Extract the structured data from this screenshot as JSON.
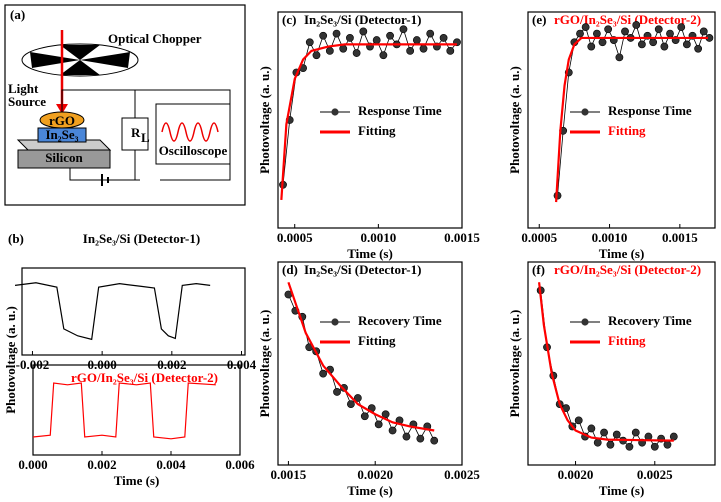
{
  "diagram": {
    "label": "(a)",
    "chopper": "Optical Chopper",
    "light_source": "Light\nSource",
    "rgo": "rGO",
    "in2se3": "In₂Se₃",
    "silicon": "Silicon",
    "resistor": "R",
    "resistor_sub": "L",
    "oscilloscope": "Oscilloscope"
  },
  "chart_data": [
    {
      "type": "line",
      "label": "(b)",
      "title": "In₂Se₃/Si (Detector-1)",
      "title_color": "#000000",
      "ylabel": "Photovoltage (a. u.)",
      "x": [
        -0.0025,
        -0.0019,
        -0.0013,
        -0.0011,
        -0.0007,
        -0.0003,
        -0.0001,
        0.0005,
        0.0011,
        0.0015,
        0.0017,
        0.0019,
        0.0021,
        0.0023,
        0.0027,
        0.0031
      ],
      "series": [
        {
          "name": "Detector-1",
          "color": "#000000",
          "values": [
            0.8,
            0.83,
            0.78,
            0.3,
            0.22,
            0.18,
            0.78,
            0.82,
            0.79,
            0.77,
            0.3,
            0.22,
            0.19,
            0.8,
            0.82,
            0.8
          ]
        }
      ],
      "xlim": [
        -0.0023,
        0.0041
      ],
      "xticks": [
        -0.002,
        {
          "value": 0,
          "label": "0.000"
        },
        0.002,
        0.004
      ],
      "ylim": [
        0,
        1
      ]
    },
    {
      "type": "line",
      "title": "rGO/In₂Se₃/Si (Detector-2)",
      "title_color": "#ff0000",
      "xlabel": "Time (s)",
      "x": [
        0,
        0.0005,
        0.0006,
        0.001,
        0.0014,
        0.0015,
        0.002,
        0.0024,
        0.0025,
        0.003,
        0.0034,
        0.0035,
        0.004,
        0.0044,
        0.0045,
        0.0053
      ],
      "series": [
        {
          "name": "Detector-2",
          "color": "#ff0000",
          "values": [
            0.2,
            0.22,
            0.8,
            0.78,
            0.8,
            0.2,
            0.22,
            0.2,
            0.8,
            0.78,
            0.8,
            0.2,
            0.18,
            0.2,
            0.8,
            0.78
          ]
        }
      ],
      "xlim": [
        0,
        0.006
      ],
      "xticks": [
        {
          "value": 0,
          "label": "0.000"
        },
        0.002,
        0.004,
        0.006
      ],
      "ylim": [
        0,
        1
      ]
    },
    {
      "type": "scatter",
      "label": "(c)",
      "title": "In₂Se₃/Si (Detector-1)",
      "title_color": "#000000",
      "xlabel": "Time (s)",
      "ylabel": "Photovoltage (a. u.)",
      "series": [
        {
          "name": "Response Time",
          "color": "#000000",
          "label_color": "#000000",
          "markers": true,
          "x": [
            0.00043,
            0.00047,
            0.00051,
            0.00055,
            0.00059,
            0.00063,
            0.00067,
            0.00071,
            0.00075,
            0.00079,
            0.00083,
            0.00087,
            0.00091,
            0.00095,
            0.00099,
            0.00103,
            0.00107,
            0.00111,
            0.00115,
            0.00119,
            0.00123,
            0.00127,
            0.00131,
            0.00135,
            0.00139,
            0.00143,
            0.00147
          ],
          "values": [
            0.2,
            0.5,
            0.72,
            0.74,
            0.86,
            0.8,
            0.89,
            0.82,
            0.9,
            0.83,
            0.88,
            0.81,
            0.91,
            0.84,
            0.87,
            0.8,
            0.89,
            0.85,
            0.92,
            0.82,
            0.87,
            0.83,
            0.9,
            0.84,
            0.88,
            0.82,
            0.86
          ]
        },
        {
          "name": "Fitting",
          "color": "#ff0000",
          "label_color": "#000000",
          "markers": false,
          "x": [
            0.00042,
            0.00045,
            0.0005,
            0.00055,
            0.0006,
            0.0007,
            0.0008,
            0.001,
            0.0012,
            0.00147
          ],
          "values": [
            0.13,
            0.48,
            0.69,
            0.78,
            0.82,
            0.84,
            0.85,
            0.85,
            0.85,
            0.85
          ]
        }
      ],
      "xlim": [
        0.0004,
        0.0015
      ],
      "xticks": [
        0.0005,
        {
          "value": 0.001,
          "label": "0.0010"
        },
        0.0015
      ],
      "ylim": [
        0,
        1
      ]
    },
    {
      "type": "scatter",
      "label": "(e)",
      "title": "rGO/In₂Se₃/Si (Detector-2)",
      "title_color": "#ff0000",
      "xlabel": "Time (s)",
      "ylabel": "Photovoltage (a. u.)",
      "series": [
        {
          "name": "Response Time",
          "color": "#000000",
          "label_color": "#000000",
          "markers": true,
          "x": [
            0.00063,
            0.00067,
            0.00071,
            0.00075,
            0.00079,
            0.00083,
            0.00087,
            0.00091,
            0.00095,
            0.00099,
            0.00103,
            0.00107,
            0.00111,
            0.00115,
            0.00119,
            0.00123,
            0.00127,
            0.00131,
            0.00135,
            0.00139,
            0.00143,
            0.00147,
            0.00151,
            0.00155,
            0.00159,
            0.00163,
            0.00167,
            0.00171
          ],
          "values": [
            0.15,
            0.45,
            0.72,
            0.86,
            0.9,
            0.93,
            0.84,
            0.9,
            0.86,
            0.92,
            0.87,
            0.79,
            0.91,
            0.88,
            0.94,
            0.85,
            0.89,
            0.86,
            0.92,
            0.84,
            0.9,
            0.87,
            0.93,
            0.85,
            0.89,
            0.83,
            0.91,
            0.88
          ]
        },
        {
          "name": "Fitting",
          "color": "#ff0000",
          "label_color": "#ff0000",
          "markers": false,
          "x": [
            0.00062,
            0.00065,
            0.00068,
            0.00071,
            0.00075,
            0.0008,
            0.001,
            0.0013,
            0.0017
          ],
          "values": [
            0.12,
            0.45,
            0.66,
            0.78,
            0.85,
            0.88,
            0.88,
            0.88,
            0.88
          ]
        }
      ],
      "xlim": [
        0.00042,
        0.00175
      ],
      "xticks": [
        0.0005,
        {
          "value": 0.001,
          "label": "0.0010"
        },
        0.0015
      ],
      "ylim": [
        0,
        1
      ]
    },
    {
      "type": "scatter",
      "label": "(d)",
      "title": "In₂Se₃/Si (Detector-1)",
      "title_color": "#000000",
      "xlabel": "Time (s)",
      "ylabel": "Photovoltage (a. u.)",
      "series": [
        {
          "name": "Recovery Time",
          "color": "#000000",
          "label_color": "#000000",
          "markers": true,
          "x": [
            0.0015,
            0.00154,
            0.00158,
            0.00162,
            0.00166,
            0.0017,
            0.00174,
            0.00178,
            0.00182,
            0.00186,
            0.0019,
            0.00194,
            0.00198,
            0.00202,
            0.00206,
            0.0021,
            0.00214,
            0.00218,
            0.00222,
            0.00226,
            0.0023,
            0.00234
          ],
          "values": [
            0.84,
            0.76,
            0.73,
            0.58,
            0.56,
            0.45,
            0.47,
            0.36,
            0.38,
            0.3,
            0.33,
            0.24,
            0.28,
            0.2,
            0.25,
            0.17,
            0.22,
            0.14,
            0.2,
            0.13,
            0.19,
            0.12
          ]
        },
        {
          "name": "Fitting",
          "color": "#ff0000",
          "label_color": "#000000",
          "markers": false,
          "x": [
            0.0015,
            0.0016,
            0.0017,
            0.0018,
            0.0019,
            0.002,
            0.0021,
            0.0022,
            0.00234
          ],
          "values": [
            0.9,
            0.65,
            0.49,
            0.39,
            0.3,
            0.25,
            0.21,
            0.19,
            0.17
          ]
        }
      ],
      "xlim": [
        0.00144,
        0.0025
      ],
      "xticks": [
        0.0015,
        {
          "value": 0.002,
          "label": "0.0020"
        },
        0.0025
      ],
      "ylim": [
        0,
        1
      ]
    },
    {
      "type": "scatter",
      "label": "(f)",
      "title": "rGO/In₂Se₃/Si (Detector-2)",
      "title_color": "#ff0000",
      "xlabel": "Time (s)",
      "ylabel": "Photovoltage (a. u.)",
      "series": [
        {
          "name": "Recovery Time",
          "color": "#000000",
          "label_color": "#000000",
          "markers": true,
          "x": [
            0.00178,
            0.00182,
            0.00186,
            0.0019,
            0.00194,
            0.00198,
            0.00202,
            0.00206,
            0.0021,
            0.00214,
            0.00218,
            0.00222,
            0.00226,
            0.0023,
            0.00234,
            0.00238,
            0.00242,
            0.00246,
            0.0025,
            0.00254,
            0.00258,
            0.00262
          ],
          "values": [
            0.86,
            0.58,
            0.44,
            0.3,
            0.28,
            0.19,
            0.22,
            0.14,
            0.18,
            0.11,
            0.16,
            0.1,
            0.15,
            0.12,
            0.09,
            0.16,
            0.11,
            0.14,
            0.09,
            0.13,
            0.1,
            0.14
          ]
        },
        {
          "name": "Fitting",
          "color": "#ff0000",
          "label_color": "#ff0000",
          "markers": false,
          "x": [
            0.00177,
            0.0018,
            0.00185,
            0.0019,
            0.00195,
            0.002,
            0.0021,
            0.0022,
            0.00262
          ],
          "values": [
            0.9,
            0.69,
            0.45,
            0.3,
            0.22,
            0.17,
            0.135,
            0.125,
            0.12
          ]
        }
      ],
      "xlim": [
        0.0017,
        0.00288
      ],
      "xticks": [
        {
          "value": 0.002,
          "label": "0.0020"
        },
        0.0025
      ],
      "ylim": [
        0,
        1
      ]
    }
  ]
}
